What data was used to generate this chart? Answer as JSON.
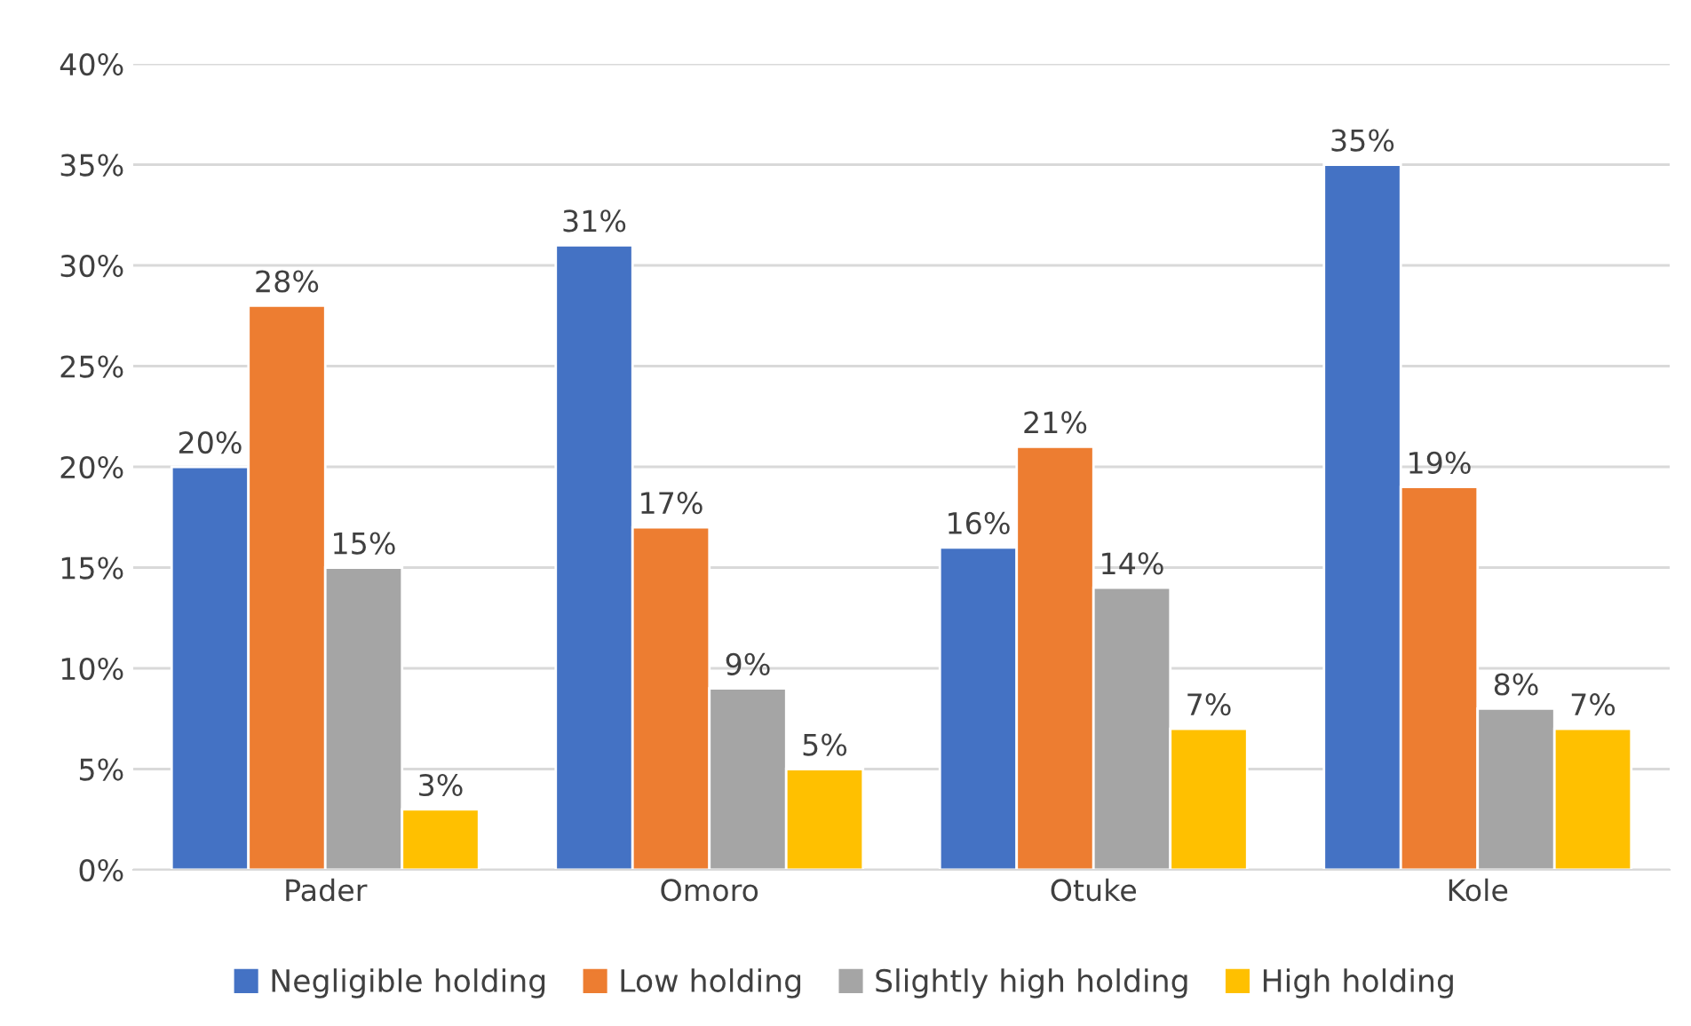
{
  "chart_data": {
    "type": "bar",
    "categories": [
      "Pader",
      "Omoro",
      "Otuke",
      "Kole"
    ],
    "series": [
      {
        "name": "Negligible holding",
        "color": "#4472c4",
        "values": [
          20,
          31,
          16,
          35
        ]
      },
      {
        "name": "Low holding",
        "color": "#ed7d31",
        "values": [
          28,
          17,
          21,
          19
        ]
      },
      {
        "name": "Slightly high holding",
        "color": "#a5a5a5",
        "values": [
          15,
          9,
          14,
          8
        ]
      },
      {
        "name": "High holding",
        "color": "#ffc000",
        "values": [
          3,
          5,
          7,
          7
        ]
      }
    ],
    "value_labels": [
      [
        "20%",
        "31%",
        "16%",
        "35%"
      ],
      [
        "28%",
        "17%",
        "21%",
        "19%"
      ],
      [
        "15%",
        "9%",
        "14%",
        "8%"
      ],
      [
        "3%",
        "5%",
        "7%",
        "7%"
      ]
    ],
    "ylim": [
      0,
      40
    ],
    "yticks": [
      {
        "value": 0,
        "label": "0%"
      },
      {
        "value": 5,
        "label": "5%"
      },
      {
        "value": 10,
        "label": "10%"
      },
      {
        "value": 15,
        "label": "15%"
      },
      {
        "value": 20,
        "label": "20%"
      },
      {
        "value": 25,
        "label": "25%"
      },
      {
        "value": 30,
        "label": "30%"
      },
      {
        "value": 35,
        "label": "35%"
      },
      {
        "value": 40,
        "label": "40%"
      }
    ],
    "grid": "y",
    "legend": "bottom"
  }
}
